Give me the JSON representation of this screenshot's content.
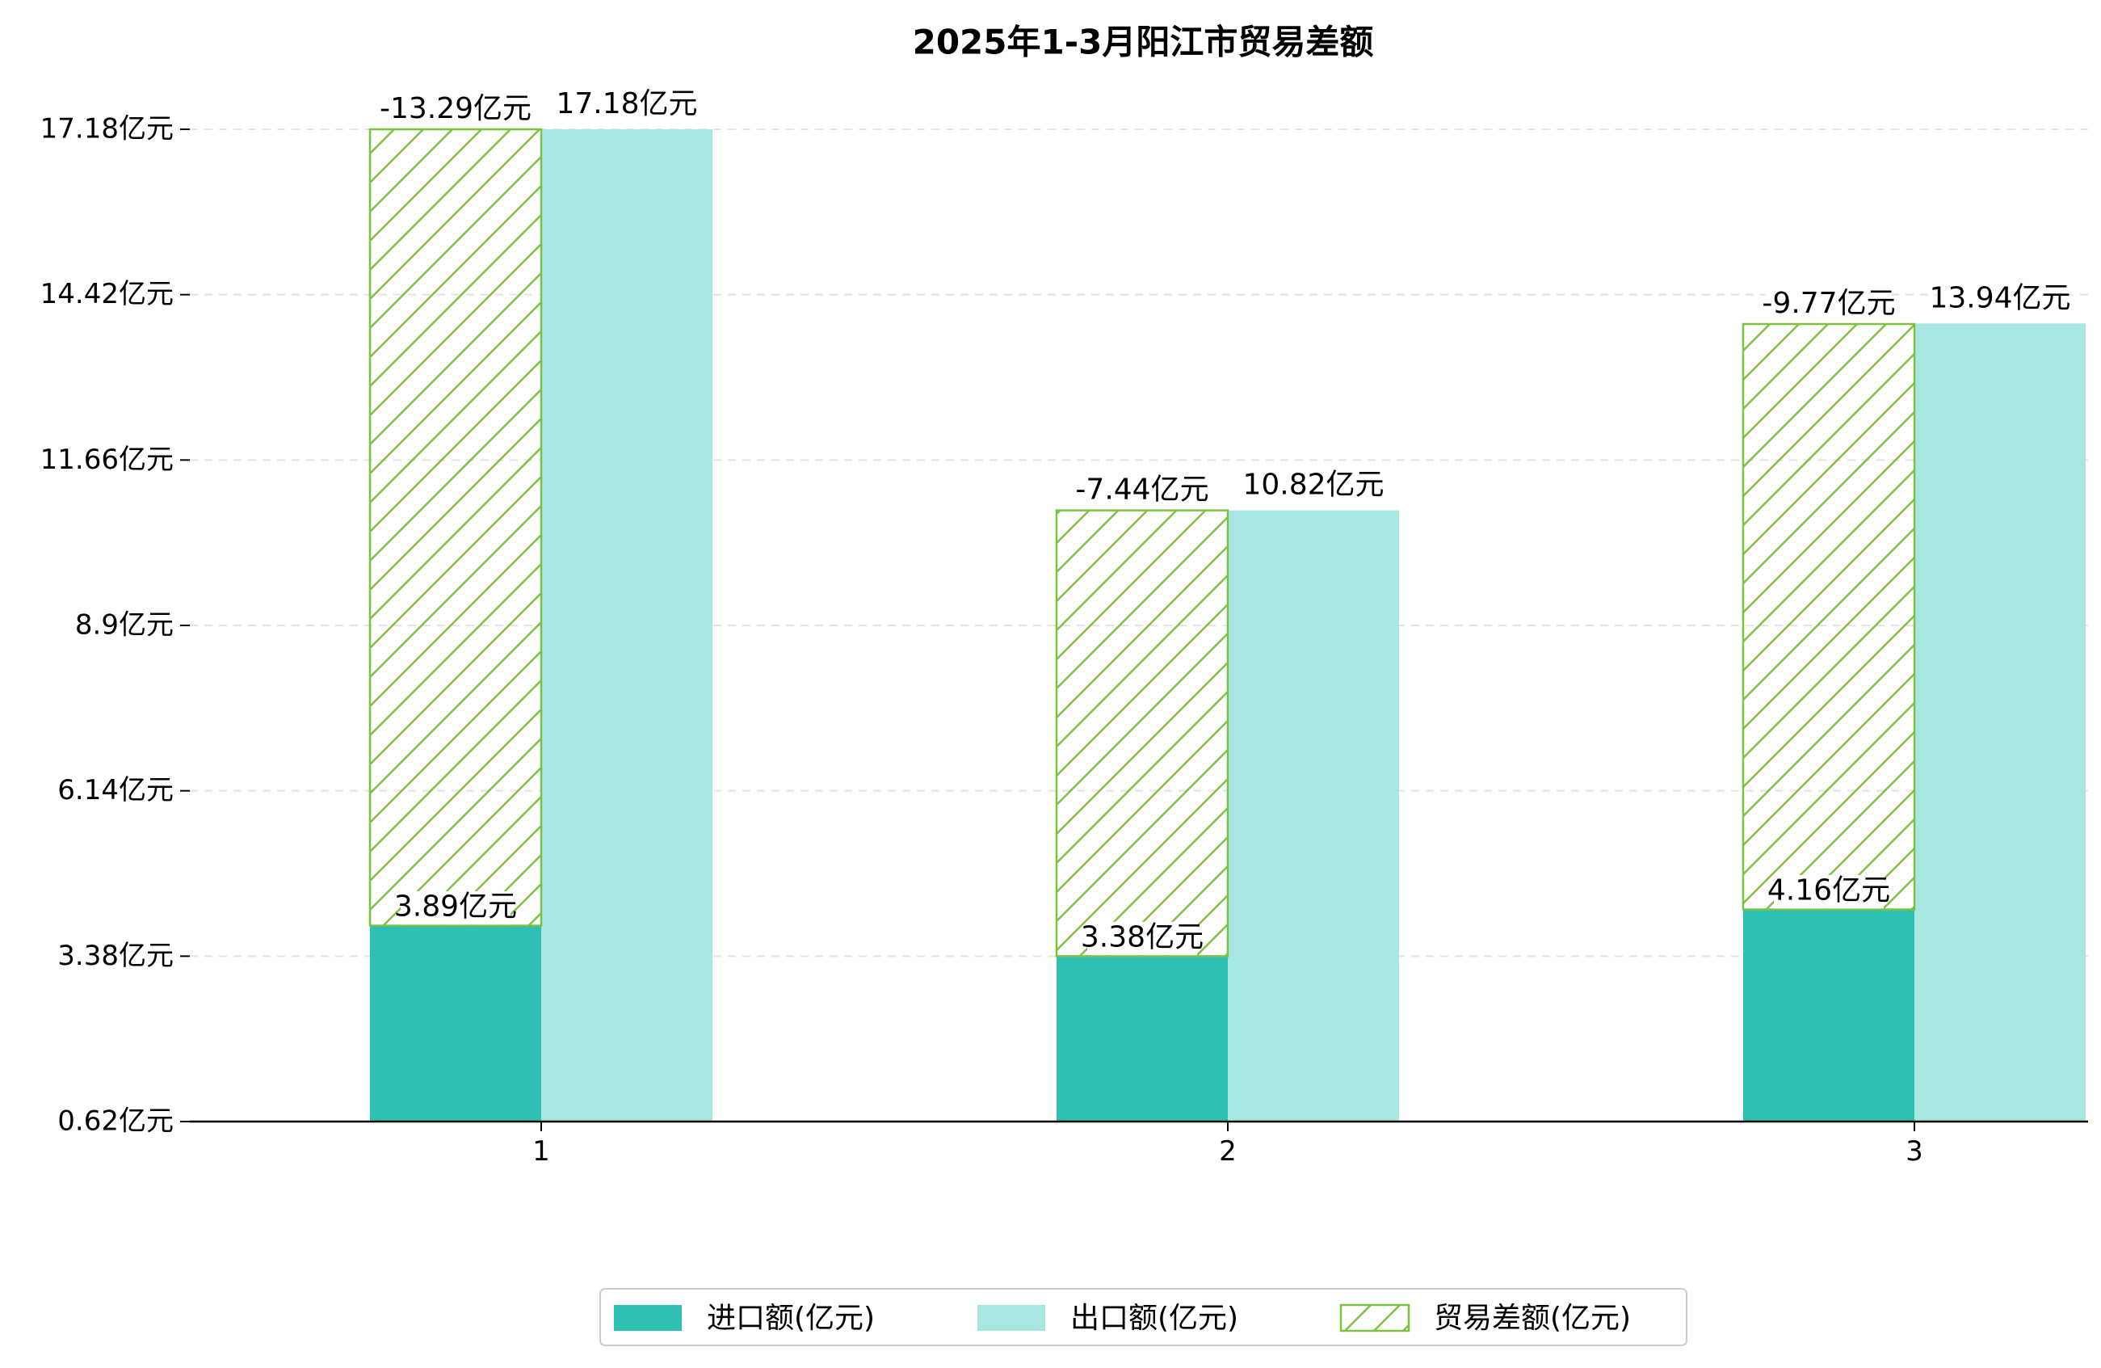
{
  "chart_data": {
    "type": "bar",
    "title": "2025年1-3月阳江市贸易差额",
    "xlabel": "",
    "ylabel": "",
    "categories": [
      "1",
      "2",
      "3"
    ],
    "series": [
      {
        "name": "进口额(亿元)",
        "values": [
          3.89,
          3.38,
          4.16
        ]
      },
      {
        "name": "出口额(亿元)",
        "values": [
          17.18,
          10.82,
          13.94
        ]
      },
      {
        "name": "贸易差额(亿元)",
        "values": [
          -13.29,
          -7.44,
          -9.77
        ]
      }
    ],
    "data_labels": {
      "import": [
        "3.89亿元",
        "3.38亿元",
        "4.16亿元"
      ],
      "export": [
        "17.18亿元",
        "10.82亿元",
        "13.94亿元"
      ],
      "balance": [
        "-13.29亿元",
        "-7.44亿元",
        "-9.77亿元"
      ]
    },
    "yticks": [
      0.62,
      3.38,
      6.14,
      8.9,
      11.66,
      14.42,
      17.18
    ],
    "ytick_labels": [
      "0.62亿元",
      "3.38亿元",
      "6.14亿元",
      "8.9亿元",
      "11.66亿元",
      "14.42亿元",
      "17.18亿元"
    ],
    "ylim": [
      0.62,
      17.18
    ],
    "grid": "horizontal-dashed",
    "legend_position": "bottom-center",
    "colors": {
      "import": "#2ec0b3",
      "export": "#a8e7e1",
      "balance_hatch": "#7dc142",
      "axis": "#000000",
      "grid": "#e4e4e4",
      "text": "#000000"
    }
  }
}
